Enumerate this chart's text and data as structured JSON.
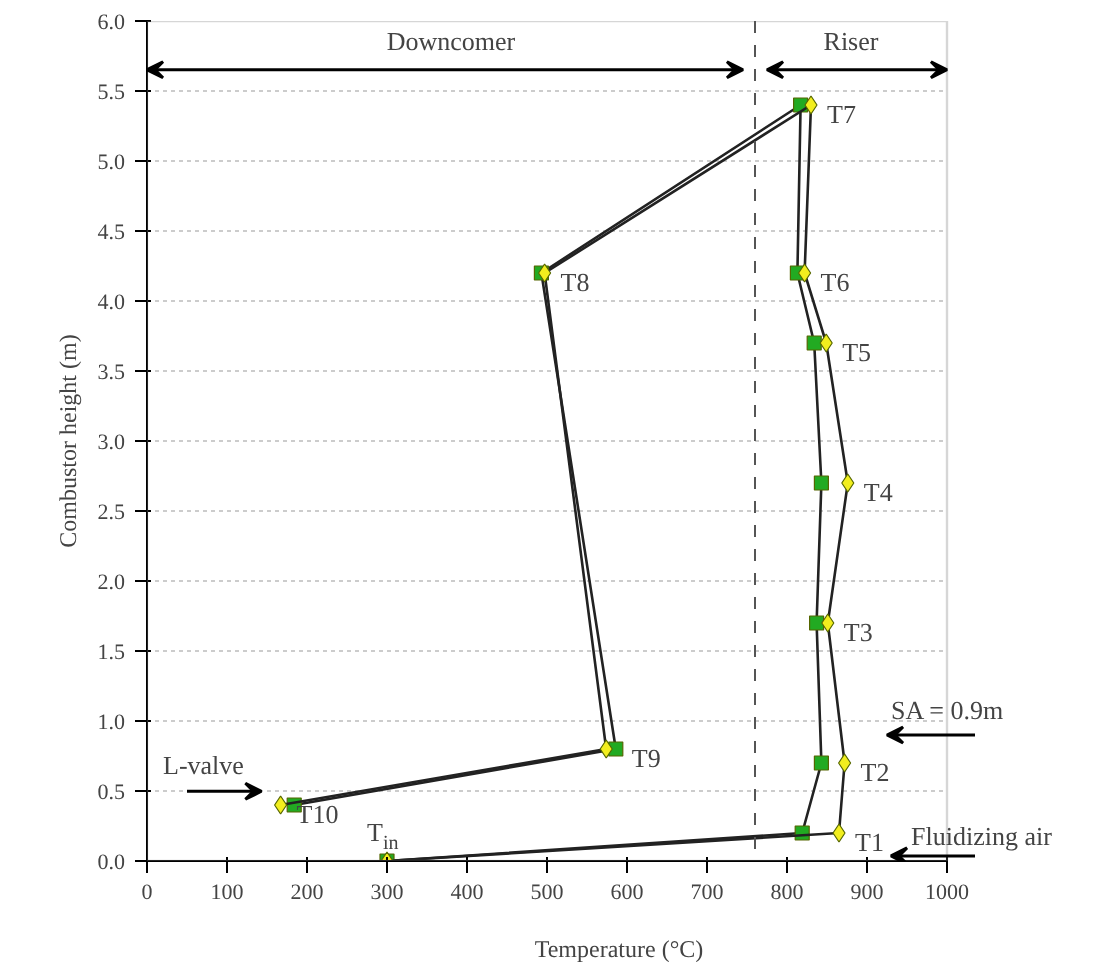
{
  "chart_data": {
    "type": "line",
    "xlabel": "Temperature (°C)",
    "ylabel": "Combustor height (m)",
    "xlim": [
      0,
      1000
    ],
    "xticks": [
      0,
      100,
      200,
      300,
      400,
      500,
      600,
      700,
      800,
      900,
      1000
    ],
    "ylim": [
      0,
      6
    ],
    "yticks": [
      {
        "value": 0,
        "label": "0.0"
      },
      {
        "value": 0.5,
        "label": "0.5"
      },
      {
        "value": 1,
        "label": "1.0"
      },
      {
        "value": 1.5,
        "label": "1.5"
      },
      {
        "value": 2,
        "label": "2.0"
      },
      {
        "value": 2.5,
        "label": "2.5"
      },
      {
        "value": 3,
        "label": "3.0"
      },
      {
        "value": 3.5,
        "label": "3.5"
      },
      {
        "value": 4,
        "label": "4.0"
      },
      {
        "value": 4.5,
        "label": "4.5"
      },
      {
        "value": 5,
        "label": "5.0"
      },
      {
        "value": 5.5,
        "label": "5.5"
      },
      {
        "value": 6,
        "label": "6.0"
      }
    ],
    "grid": "y",
    "line_style": "solid",
    "series": [
      {
        "color": "#22aa22",
        "marker": "square",
        "x": [
          300,
          819,
          843,
          837,
          843,
          834,
          813,
          817,
          493,
          586,
          184
        ],
        "values": [
          0,
          0.2,
          0.7,
          1.7,
          2.7,
          3.7,
          4.2,
          5.4,
          4.2,
          0.8,
          0.4
        ]
      },
      {
        "color": "#f2ee1e",
        "marker": "diamond",
        "x": [
          300,
          865,
          872,
          851,
          876,
          849,
          822,
          830,
          497,
          574,
          167
        ],
        "values": [
          0,
          0.2,
          0.7,
          1.7,
          2.7,
          3.7,
          4.2,
          5.4,
          4.2,
          0.8,
          0.4
        ]
      }
    ],
    "ref_lines": [
      {
        "axis": "x",
        "value": 760,
        "line_style": "dashed",
        "color": "#555555"
      }
    ],
    "annotations": [
      "Downcomer",
      "Riser",
      "L-valve",
      "SA = 0.9m",
      "Fluidizing air",
      {
        "text": "T$_{in}$",
        "x": 300,
        "y": 0
      },
      {
        "text": "T1",
        "x": 865,
        "y": 0.2
      },
      {
        "text": "T2",
        "x": 872,
        "y": 0.7
      },
      {
        "text": "T3",
        "x": 851,
        "y": 1.7
      },
      {
        "text": "T4",
        "x": 876,
        "y": 2.7
      },
      {
        "text": "T5",
        "x": 849,
        "y": 3.7
      },
      {
        "text": "T6",
        "x": 822,
        "y": 4.2
      },
      {
        "text": "T7",
        "x": 830,
        "y": 5.4
      },
      {
        "text": "T8",
        "x": 497,
        "y": 4.2
      },
      {
        "text": "T9",
        "x": 586,
        "y": 0.8
      },
      {
        "text": "T10",
        "x": 167,
        "y": 0.4
      }
    ]
  }
}
